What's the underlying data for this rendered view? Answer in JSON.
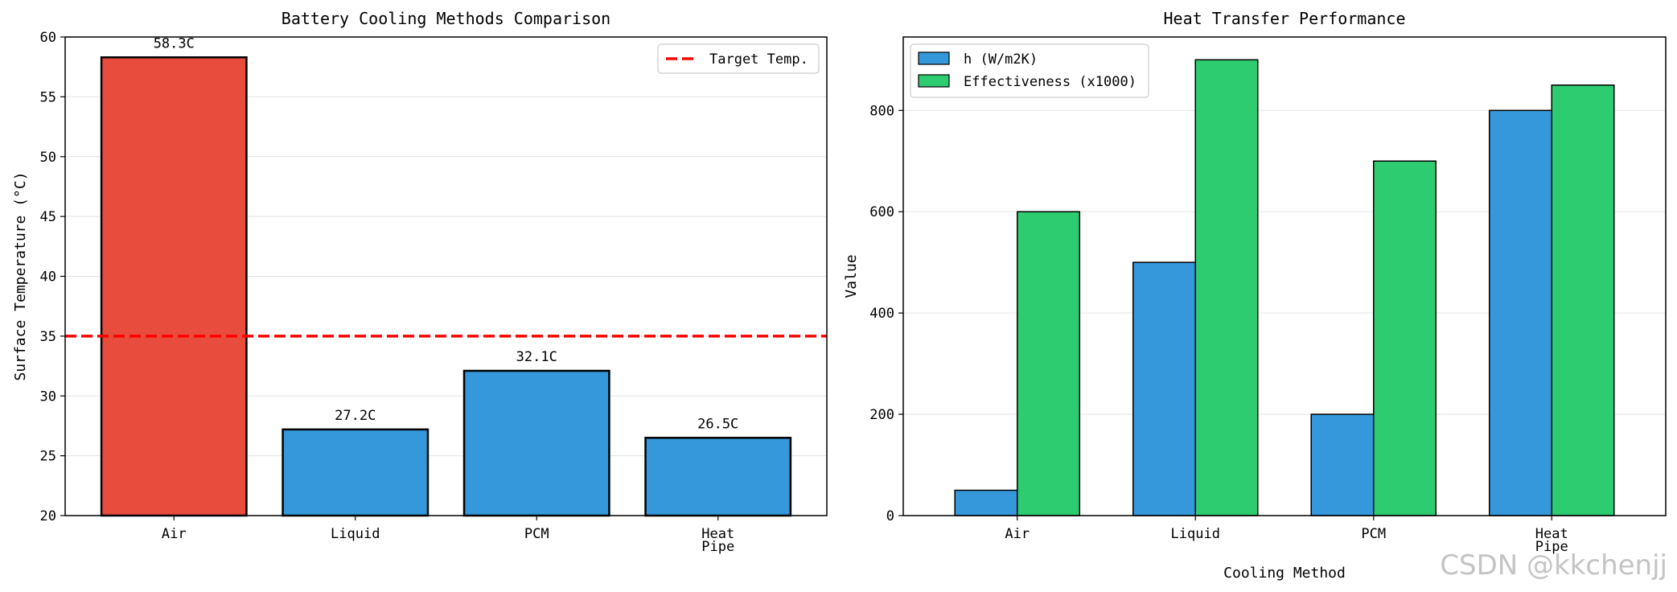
{
  "chart_data": [
    {
      "type": "bar",
      "title": "Battery Cooling Methods Comparison",
      "xlabel": "",
      "ylabel": "Surface Temperature (°C)",
      "categories": [
        "Air",
        "Liquid",
        "PCM",
        "Heat\nPipe"
      ],
      "values": [
        58.3,
        27.2,
        32.1,
        26.5
      ],
      "value_labels": [
        "58.3C",
        "27.2C",
        "32.1C",
        "26.5C"
      ],
      "bar_colors": [
        "#e74c3c",
        "#3498db",
        "#3498db",
        "#3498db"
      ],
      "ylim": [
        20,
        60
      ],
      "yticks": [
        20,
        25,
        30,
        35,
        40,
        45,
        50,
        55,
        60
      ],
      "grid": "y",
      "reference_line": {
        "label": "Target Temp.",
        "value": 35,
        "color": "#ff0000",
        "style": "dashed"
      },
      "legend": {
        "position": "top-right",
        "entries": [
          "Target Temp."
        ]
      }
    },
    {
      "type": "bar",
      "title": "Heat Transfer Performance",
      "xlabel": "Cooling Method",
      "ylabel": "Value",
      "categories": [
        "Air",
        "Liquid",
        "PCM",
        "Heat\nPipe"
      ],
      "series": [
        {
          "name": "h (W/m2K)",
          "values": [
            50,
            500,
            200,
            800
          ],
          "color": "#3498db"
        },
        {
          "name": "Effectiveness (x1000)",
          "values": [
            600,
            900,
            700,
            850
          ],
          "color": "#2ecc71"
        }
      ],
      "ylim": [
        0,
        945
      ],
      "yticks": [
        0,
        200,
        400,
        600,
        800
      ],
      "grid": "y",
      "legend": {
        "position": "top-left",
        "entries": [
          "h (W/m2K)",
          "Effectiveness (x1000)"
        ]
      }
    }
  ],
  "watermark": "CSDN @kkchenjj"
}
